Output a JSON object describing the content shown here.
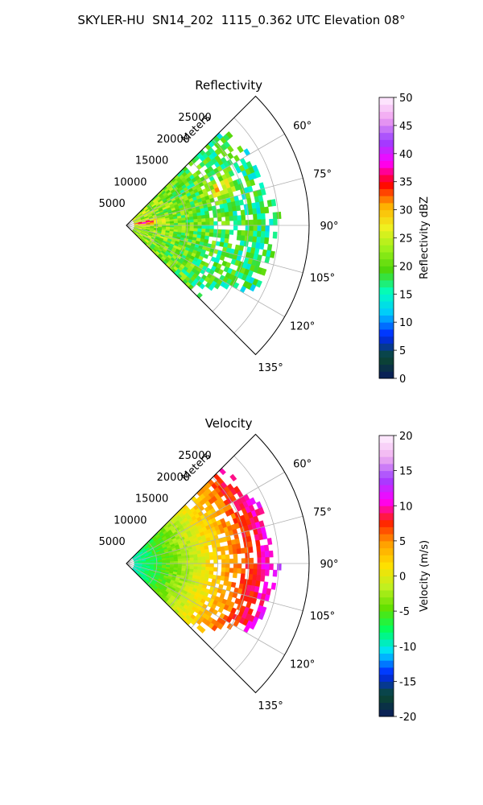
{
  "figure_title": "SKYLER-HU  SN14_202  1115_0.362 UTC Elevation 08°",
  "chart_data": [
    {
      "type": "heatmap",
      "subtype": "polar-sector",
      "title": "Reflectivity",
      "range_label": "Meters",
      "range_ticks": [
        "5000",
        "10000",
        "15000",
        "20000",
        "25000"
      ],
      "range_max": 30000,
      "azimuth_range_deg": [
        45,
        135
      ],
      "azimuth_ticks": [
        "60°",
        "75°",
        "90°",
        "105°",
        "120°",
        "135°"
      ],
      "grid": true,
      "colorbar": {
        "label": "Reflectivity dBZ",
        "range": [
          0,
          50
        ],
        "ticks": [
          "0",
          "5",
          "10",
          "15",
          "20",
          "25",
          "30",
          "35",
          "40",
          "45",
          "50"
        ],
        "colors": [
          "#0a1a5c",
          "#0b4a2e",
          "#0026ff",
          "#00c8ff",
          "#00ffc0",
          "#4cd60a",
          "#9ef01a",
          "#f0f020",
          "#ffb000",
          "#ff0000",
          "#ff00ff",
          "#9a40ff",
          "#f0a0f0",
          "#fff0ff"
        ]
      },
      "data_note": "Dense near field 20-30 dBZ; local maxima ~35 dBZ near 3000 m at ~82° and ~17000 m at ~68°; sparse 15-20 dBZ cells out to ~22000 m"
    },
    {
      "type": "heatmap",
      "subtype": "polar-sector",
      "title": "Velocity",
      "range_label": "Meters",
      "range_ticks": [
        "5000",
        "10000",
        "15000",
        "20000",
        "25000"
      ],
      "range_max": 30000,
      "azimuth_range_deg": [
        45,
        135
      ],
      "azimuth_ticks": [
        "60°",
        "75°",
        "90°",
        "105°",
        "120°",
        "135°"
      ],
      "grid": true,
      "colorbar": {
        "label": "Velocity (m/s)",
        "range": [
          -20,
          20
        ],
        "ticks": [
          "-20",
          "-15",
          "-10",
          "-5",
          "0",
          "5",
          "10",
          "15",
          "20"
        ],
        "colors": [
          "#0a1a5c",
          "#0b4a2e",
          "#0026ff",
          "#00e0ff",
          "#00ff60",
          "#60e000",
          "#c0f020",
          "#ffe000",
          "#ffa000",
          "#ff2000",
          "#ff00ff",
          "#a040ff",
          "#f0b0f0",
          "#fff0ff"
        ]
      },
      "data_note": "Velocity increases with range from about -10 m/s near radar to about +15 m/s beyond 15000 m"
    }
  ]
}
